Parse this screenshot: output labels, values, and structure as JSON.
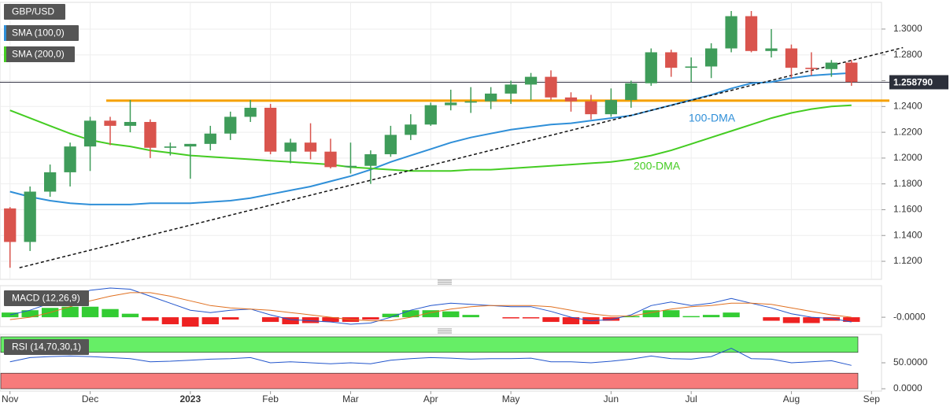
{
  "chart_data": [
    {
      "type": "candlestick",
      "categories": [
        "Nov",
        null,
        null,
        null,
        "Dec",
        null,
        null,
        null,
        null,
        "2023",
        null,
        null,
        null,
        "Feb",
        null,
        null,
        null,
        "Mar",
        null,
        null,
        null,
        "Apr",
        null,
        null,
        null,
        "May",
        null,
        null,
        null,
        null,
        "Jun",
        null,
        null,
        null,
        "Jul",
        null,
        null,
        null,
        null,
        "Aug",
        null,
        null,
        null,
        "Sep"
      ],
      "series": [
        {
          "name": "GBP/USD",
          "up_color": "#3f9c5a",
          "down_color": "#d9544d",
          "open": [
            1.161,
            1.135,
            1.174,
            1.189,
            1.209,
            1.229,
            1.225,
            1.228,
            1.208,
            1.209,
            1.211,
            1.219,
            1.232,
            1.239,
            1.205,
            1.212,
            1.205,
            1.193,
            1.194,
            1.203,
            1.218,
            1.226,
            1.241,
            1.243,
            1.244,
            1.25,
            1.257,
            1.263,
            1.247,
            1.244,
            1.234,
            1.245,
            1.258,
            1.282,
            1.27,
            1.271,
            1.285,
            1.31,
            1.283,
            1.285,
            1.27,
            1.269,
            1.274,
            null
          ],
          "high": [
            1.162,
            1.178,
            1.195,
            1.212,
            1.232,
            1.232,
            1.245,
            1.23,
            1.212,
            1.211,
            1.225,
            1.236,
            1.245,
            1.242,
            1.215,
            1.227,
            1.215,
            1.212,
            1.206,
            1.225,
            1.234,
            1.243,
            1.253,
            1.255,
            1.255,
            1.26,
            1.266,
            1.268,
            1.251,
            1.249,
            1.254,
            1.26,
            1.285,
            1.284,
            1.278,
            1.289,
            1.314,
            1.314,
            1.3,
            1.288,
            1.282,
            1.276,
            1.276,
            null
          ],
          "low": [
            1.115,
            1.128,
            1.17,
            1.178,
            1.19,
            1.21,
            1.22,
            1.2,
            1.202,
            1.184,
            1.206,
            1.214,
            1.228,
            1.203,
            1.196,
            1.199,
            1.192,
            1.188,
            1.18,
            1.201,
            1.214,
            1.225,
            1.237,
            1.235,
            1.238,
            1.242,
            1.245,
            1.245,
            1.236,
            1.23,
            1.232,
            1.239,
            1.256,
            1.263,
            1.259,
            1.262,
            1.282,
            1.282,
            1.278,
            1.262,
            1.264,
            1.263,
            1.256,
            null
          ],
          "close": [
            1.135,
            1.174,
            1.189,
            1.209,
            1.229,
            1.225,
            1.228,
            1.208,
            1.209,
            1.211,
            1.219,
            1.232,
            1.239,
            1.205,
            1.212,
            1.205,
            1.193,
            1.194,
            1.203,
            1.218,
            1.226,
            1.241,
            1.243,
            1.244,
            1.25,
            1.257,
            1.263,
            1.247,
            1.244,
            1.234,
            1.245,
            1.258,
            1.282,
            1.27,
            1.271,
            1.285,
            1.31,
            1.283,
            1.285,
            1.27,
            1.269,
            1.274,
            1.259,
            null
          ]
        }
      ],
      "lines": [
        {
          "name": "SMA (100,0)",
          "color": "#2f8fd8",
          "values": [
            1.174,
            1.17,
            1.167,
            1.165,
            1.164,
            1.164,
            1.164,
            1.165,
            1.165,
            1.165,
            1.166,
            1.167,
            1.169,
            1.172,
            1.175,
            1.178,
            1.182,
            1.186,
            1.191,
            1.197,
            1.202,
            1.207,
            1.212,
            1.216,
            1.219,
            1.222,
            1.224,
            1.226,
            1.227,
            1.229,
            1.231,
            1.233,
            1.237,
            1.241,
            1.245,
            1.249,
            1.254,
            1.258,
            1.259,
            1.262,
            1.264,
            1.265,
            1.266,
            null
          ]
        },
        {
          "name": "SMA (200,0)",
          "color": "#44cc22",
          "values": [
            1.237,
            1.231,
            1.225,
            1.219,
            1.214,
            1.211,
            1.209,
            1.206,
            1.204,
            1.202,
            1.201,
            1.2,
            1.199,
            1.198,
            1.197,
            1.196,
            1.195,
            1.193,
            1.192,
            1.191,
            1.19,
            1.19,
            1.19,
            1.191,
            1.191,
            1.192,
            1.193,
            1.194,
            1.195,
            1.196,
            1.197,
            1.199,
            1.202,
            1.206,
            1.211,
            1.216,
            1.221,
            1.226,
            1.231,
            1.235,
            1.238,
            1.24,
            1.241,
            null
          ]
        }
      ],
      "annotations": [
        {
          "text": "100-DMA",
          "color": "#2f8fd8"
        },
        {
          "text": "200-DMA",
          "color": "#44cc22"
        }
      ],
      "support": {
        "value": 1.2445,
        "color": "#f5a000"
      },
      "trendline": {
        "values": [
          1.115,
          1.277
        ]
      },
      "last_price": {
        "value": 1.25879,
        "label": "1.258790"
      },
      "ylim": [
        1.106,
        1.3207
      ],
      "yticks": [
        {
          "value": 1.12,
          "label": "1.1200"
        },
        {
          "value": 1.14,
          "label": "1.1400"
        },
        {
          "value": 1.16,
          "label": "1.1600"
        },
        {
          "value": 1.18,
          "label": "1.1800"
        },
        {
          "value": 1.2,
          "label": "1.2000"
        },
        {
          "value": 1.22,
          "label": "1.2200"
        },
        {
          "value": 1.24,
          "label": "1.2400"
        },
        {
          "value": 1.26,
          "label": "1.2600"
        },
        {
          "value": 1.28,
          "label": "1.2800"
        },
        {
          "value": 1.3,
          "label": "1.3000"
        }
      ],
      "grid": true
    },
    {
      "type": "macd",
      "title": "MACD (12,26,9)",
      "series": [
        {
          "color": "#2255cc",
          "values": [
            0.002,
            0.006,
            0.012,
            0.018,
            0.023,
            0.025,
            0.024,
            0.018,
            0.012,
            0.006,
            0.004,
            0.006,
            0.007,
            0.002,
            -0.002,
            -0.003,
            -0.004,
            -0.006,
            -0.005,
            0.0,
            0.006,
            0.01,
            0.012,
            0.011,
            0.01,
            0.009,
            0.009,
            0.005,
            0.0,
            -0.003,
            -0.002,
            0.002,
            0.01,
            0.013,
            0.01,
            0.012,
            0.016,
            0.012,
            0.008,
            0.003,
            0.0,
            -0.001,
            -0.004,
            null
          ]
        },
        {
          "color": "#e07020",
          "values": [
            -0.002,
            0.0,
            0.004,
            0.009,
            0.014,
            0.018,
            0.021,
            0.021,
            0.018,
            0.014,
            0.01,
            0.008,
            0.007,
            0.006,
            0.004,
            0.002,
            0.0,
            -0.002,
            -0.003,
            -0.003,
            0.0,
            0.004,
            0.007,
            0.009,
            0.01,
            0.01,
            0.01,
            0.009,
            0.006,
            0.003,
            0.001,
            0.001,
            0.004,
            0.007,
            0.009,
            0.01,
            0.012,
            0.012,
            0.011,
            0.008,
            0.005,
            0.002,
            0.0,
            null
          ]
        }
      ],
      "histogram": {
        "up_color": "#33cc33",
        "down_color": "#ee2222",
        "values": [
          0.004,
          0.006,
          0.008,
          0.009,
          0.009,
          0.007,
          0.003,
          -0.003,
          -0.006,
          -0.008,
          -0.006,
          -0.002,
          0.0,
          -0.004,
          -0.006,
          -0.005,
          -0.004,
          -0.004,
          -0.002,
          0.003,
          0.006,
          0.006,
          0.005,
          0.002,
          0.0,
          -0.001,
          -0.001,
          -0.004,
          -0.006,
          -0.006,
          -0.003,
          0.001,
          0.006,
          0.006,
          0.001,
          0.002,
          0.004,
          0.0,
          -0.003,
          -0.005,
          -0.005,
          -0.003,
          -0.004,
          null
        ]
      },
      "ylim": [
        -0.008,
        0.027
      ],
      "yticks": [
        {
          "value": 0,
          "label": "-0.0000"
        }
      ]
    },
    {
      "type": "rsi",
      "title": "RSI (14,70,30,1)",
      "series": [
        {
          "color": "#2255cc",
          "values": [
            52,
            60,
            62,
            63,
            62,
            60,
            58,
            52,
            53,
            55,
            57,
            58,
            60,
            50,
            52,
            50,
            48,
            50,
            48,
            55,
            58,
            60,
            59,
            57,
            58,
            58,
            59,
            52,
            52,
            50,
            53,
            57,
            63,
            58,
            57,
            62,
            78,
            58,
            57,
            50,
            52,
            54,
            45,
            null
          ]
        }
      ],
      "bands": [
        {
          "range": [
            70,
            100
          ],
          "color": "#66ee66"
        },
        {
          "range": [
            0,
            30
          ],
          "color": "#f77b7b"
        }
      ],
      "ylim": [
        0,
        100
      ],
      "yticks": [
        {
          "value": 50,
          "label": "50.0000"
        },
        {
          "value": 0,
          "label": "0.0000"
        }
      ]
    }
  ]
}
